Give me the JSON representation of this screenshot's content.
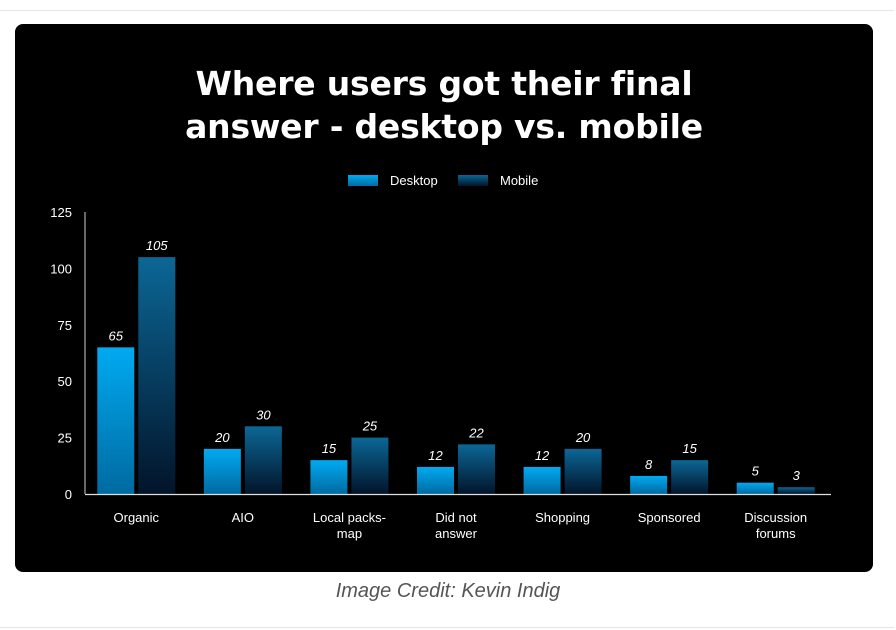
{
  "chart_data": {
    "type": "bar",
    "title_lines": [
      "Where users got their final",
      "answer - desktop vs. mobile"
    ],
    "categories": [
      [
        "Organic"
      ],
      [
        "AIO"
      ],
      [
        "Local packs-",
        "map"
      ],
      [
        "Did not",
        "answer"
      ],
      [
        "Shopping"
      ],
      [
        "Sponsored"
      ],
      [
        "Discussion",
        "forums"
      ]
    ],
    "series": [
      {
        "name": "Desktop",
        "color": "#00a6ee",
        "values": [
          65,
          20,
          15,
          12,
          12,
          8,
          5
        ]
      },
      {
        "name": "Mobile",
        "color": "#0b5e8a",
        "values": [
          105,
          30,
          25,
          22,
          20,
          15,
          3
        ]
      }
    ],
    "ylim": [
      0,
      125
    ],
    "yticks": [
      "0",
      "25",
      "50",
      "75",
      "100",
      "125"
    ],
    "legend_position": "top",
    "grid": false
  },
  "credit": "Image Credit: Kevin Indig"
}
